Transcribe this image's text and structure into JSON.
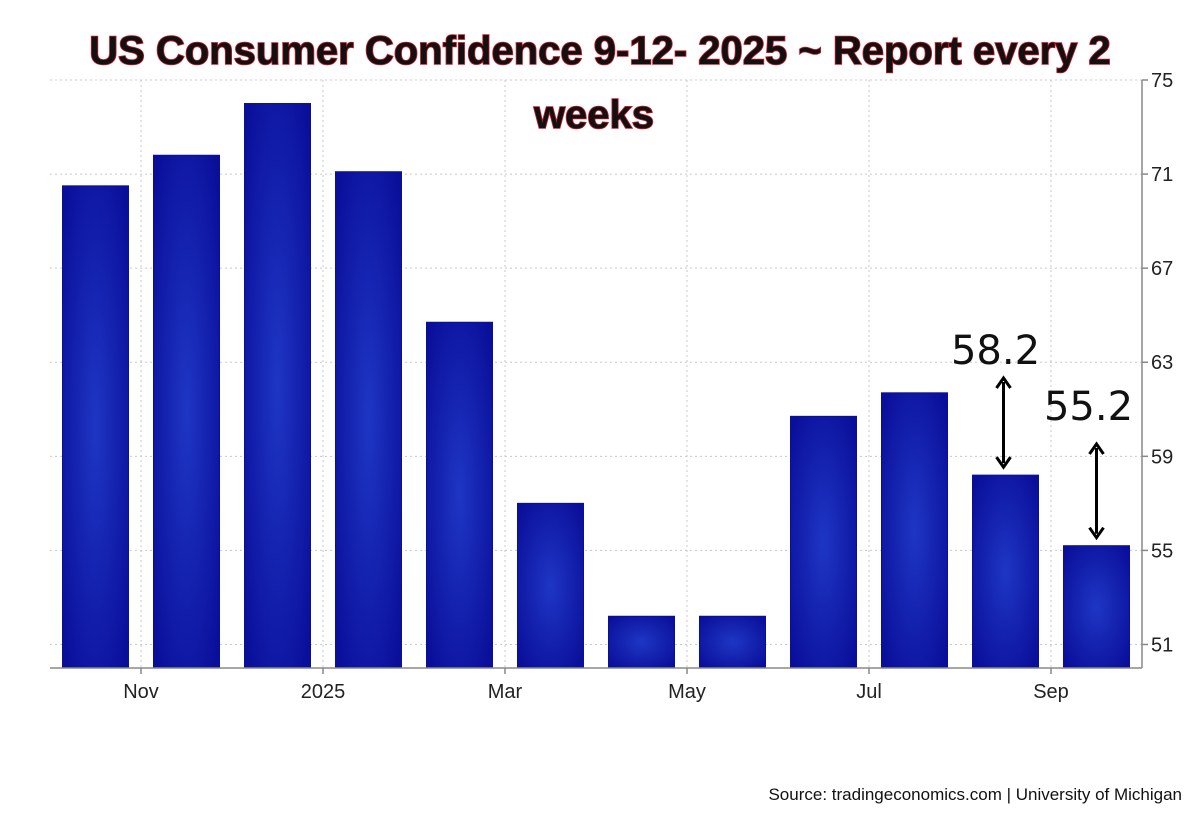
{
  "chart_data": {
    "type": "bar",
    "title_line1": "US Consumer Confidence 9-12- 2025  ~ Report every 2",
    "title_line2": "weeks",
    "x_tick_labels": [
      "Nov",
      "2025",
      "Mar",
      "May",
      "Jul",
      "Sep"
    ],
    "x_tick_positions": [
      1,
      3,
      5,
      7,
      9,
      11
    ],
    "values": [
      70.5,
      71.8,
      74.0,
      71.1,
      64.7,
      57.0,
      52.2,
      52.2,
      60.7,
      61.7,
      58.2,
      55.2
    ],
    "ylim": [
      50,
      75
    ],
    "y_ticks": [
      51,
      55,
      59,
      63,
      67,
      71,
      75
    ],
    "grid": true,
    "annotations": [
      {
        "text": "58.2",
        "bar_index": 10
      },
      {
        "text": "55.2",
        "bar_index": 11
      }
    ],
    "source": "Source: tradingeconomics.com | University of Michigan",
    "colors": {
      "bar": "#0a0f9a",
      "bar_center": "#1e36c4",
      "title_stroke": "#d11a2a"
    }
  }
}
